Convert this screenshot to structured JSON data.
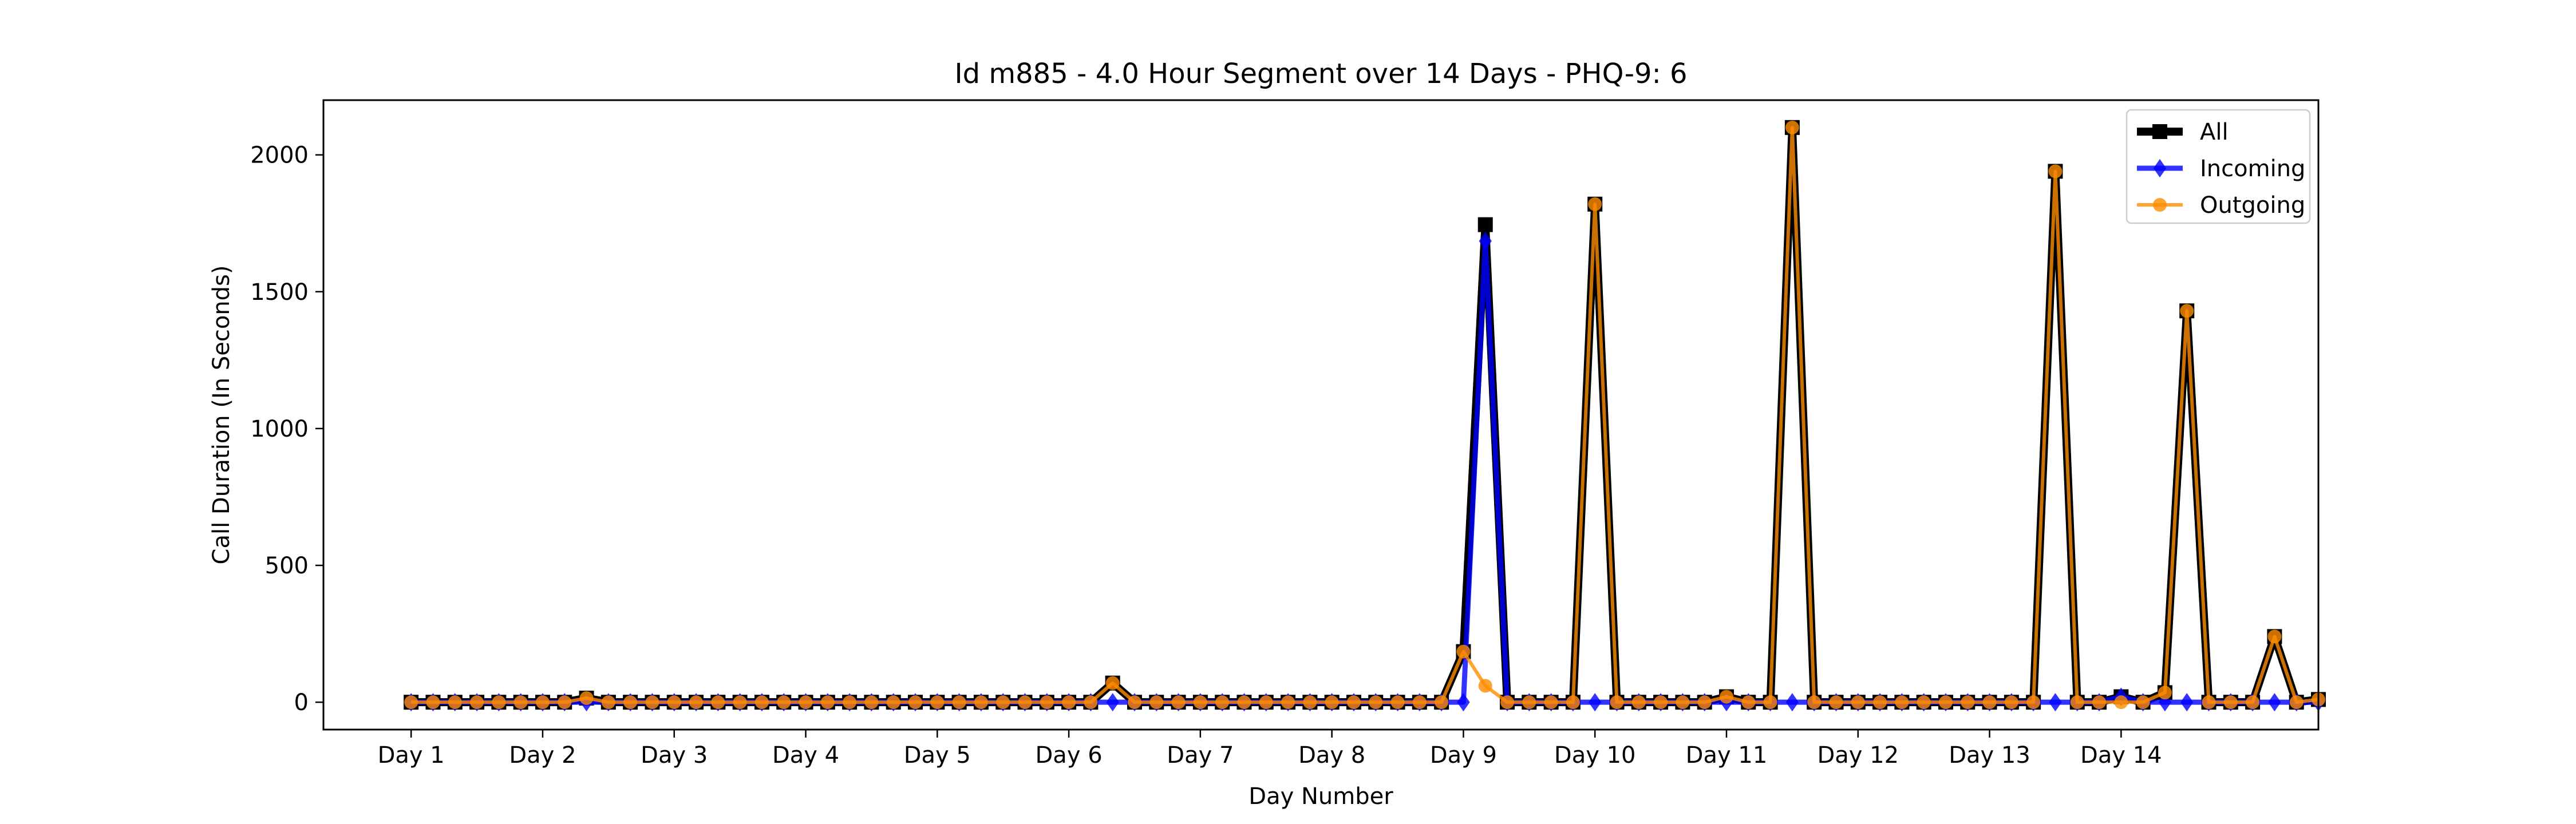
{
  "chart_data": {
    "type": "line",
    "title": "Id m885 - 4.0 Hour Segment over 14 Days - PHQ-9: 6",
    "xlabel": "Day Number",
    "ylabel": "Call Duration (In Seconds)",
    "ylim": [
      -100,
      2200
    ],
    "xlim": [
      -4,
      87
    ],
    "yticks": [
      0,
      500,
      1000,
      1500,
      2000
    ],
    "xticks": [
      {
        "x": 0,
        "label": "Day 1"
      },
      {
        "x": 6,
        "label": "Day 2"
      },
      {
        "x": 12,
        "label": "Day 3"
      },
      {
        "x": 18,
        "label": "Day 4"
      },
      {
        "x": 24,
        "label": "Day 5"
      },
      {
        "x": 30,
        "label": "Day 6"
      },
      {
        "x": 36,
        "label": "Day 7"
      },
      {
        "x": 42,
        "label": "Day 8"
      },
      {
        "x": 48,
        "label": "Day 9"
      },
      {
        "x": 54,
        "label": "Day 10"
      },
      {
        "x": 60,
        "label": "Day 11"
      },
      {
        "x": 66,
        "label": "Day 12"
      },
      {
        "x": 72,
        "label": "Day 13"
      },
      {
        "x": 78,
        "label": "Day 14"
      }
    ],
    "grid": false,
    "legend_position": "top-right",
    "series": [
      {
        "name": "All",
        "color": "#000000",
        "marker": "square",
        "values": [
          0,
          0,
          0,
          0,
          0,
          0,
          0,
          0,
          15,
          0,
          0,
          0,
          0,
          0,
          0,
          0,
          0,
          0,
          0,
          0,
          0,
          0,
          0,
          0,
          0,
          0,
          0,
          0,
          0,
          0,
          0,
          0,
          70,
          0,
          0,
          0,
          0,
          0,
          0,
          0,
          0,
          0,
          0,
          0,
          0,
          0,
          0,
          0,
          185,
          1745,
          0,
          0,
          0,
          0,
          1820,
          0,
          0,
          0,
          0,
          0,
          20,
          0,
          0,
          2100,
          0,
          0,
          0,
          0,
          0,
          0,
          0,
          0,
          0,
          0,
          0,
          1940,
          0,
          0,
          20,
          0,
          35,
          1430,
          0,
          0,
          0,
          240,
          0,
          10
        ]
      },
      {
        "name": "Incoming",
        "color": "#0000ff",
        "marker": "diamond",
        "values": [
          0,
          0,
          0,
          0,
          0,
          0,
          0,
          0,
          0,
          0,
          0,
          0,
          0,
          0,
          0,
          0,
          0,
          0,
          0,
          0,
          0,
          0,
          0,
          0,
          0,
          0,
          0,
          0,
          0,
          0,
          0,
          0,
          0,
          0,
          0,
          0,
          0,
          0,
          0,
          0,
          0,
          0,
          0,
          0,
          0,
          0,
          0,
          0,
          0,
          1685,
          0,
          0,
          0,
          0,
          0,
          0,
          0,
          0,
          0,
          0,
          0,
          0,
          0,
          0,
          0,
          0,
          0,
          0,
          0,
          0,
          0,
          0,
          0,
          0,
          0,
          0,
          0,
          0,
          20,
          0,
          0,
          0,
          0,
          0,
          0,
          0,
          0,
          0
        ]
      },
      {
        "name": "Outgoing",
        "color": "#ff8c00",
        "marker": "circle",
        "values": [
          0,
          0,
          0,
          0,
          0,
          0,
          0,
          0,
          15,
          0,
          0,
          0,
          0,
          0,
          0,
          0,
          0,
          0,
          0,
          0,
          0,
          0,
          0,
          0,
          0,
          0,
          0,
          0,
          0,
          0,
          0,
          0,
          70,
          0,
          0,
          0,
          0,
          0,
          0,
          0,
          0,
          0,
          0,
          0,
          0,
          0,
          0,
          0,
          185,
          60,
          0,
          0,
          0,
          0,
          1820,
          0,
          0,
          0,
          0,
          0,
          20,
          0,
          0,
          2100,
          0,
          0,
          0,
          0,
          0,
          0,
          0,
          0,
          0,
          0,
          0,
          1940,
          0,
          0,
          0,
          0,
          35,
          1430,
          0,
          0,
          0,
          240,
          0,
          10
        ]
      }
    ]
  }
}
